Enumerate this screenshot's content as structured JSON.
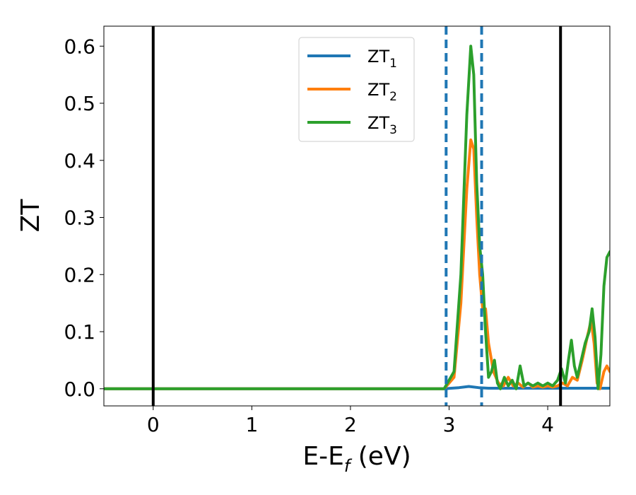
{
  "chart_data": {
    "type": "line",
    "xlabel": "E-E",
    "xlabel_sub": "f",
    "xlabel_unit": " (eV)",
    "ylabel": "ZT",
    "xlim": [
      -0.5,
      4.63
    ],
    "ylim": [
      -0.03,
      0.635
    ],
    "xticks": [
      0,
      1,
      2,
      3,
      4
    ],
    "xtick_labels": [
      "0",
      "1",
      "2",
      "3",
      "4"
    ],
    "yticks": [
      0.0,
      0.1,
      0.2,
      0.3,
      0.4,
      0.5,
      0.6
    ],
    "ytick_labels": [
      "0.0",
      "0.1",
      "0.2",
      "0.3",
      "0.4",
      "0.5",
      "0.6"
    ],
    "grid": false,
    "legend_position": "top-center",
    "vlines": [
      {
        "x": 0.0,
        "style": "solid",
        "color": "#000000"
      },
      {
        "x": 4.13,
        "style": "solid",
        "color": "#000000"
      },
      {
        "x": 2.97,
        "style": "dashed",
        "color": "#1f77b4"
      },
      {
        "x": 3.33,
        "style": "dashed",
        "color": "#1f77b4"
      }
    ],
    "series": [
      {
        "name": "ZT",
        "name_sub": "1",
        "color": "#1f77b4",
        "x": [
          -0.5,
          2.95,
          3.1,
          3.2,
          3.3,
          3.4,
          4.0,
          4.63
        ],
        "y": [
          0.0,
          0.0,
          0.002,
          0.004,
          0.002,
          0.001,
          0.001,
          0.001
        ]
      },
      {
        "name": "ZT",
        "name_sub": "2",
        "color": "#ff7f0e",
        "x": [
          -0.5,
          2.95,
          3.05,
          3.12,
          3.18,
          3.22,
          3.25,
          3.28,
          3.31,
          3.34,
          3.37,
          3.4,
          3.45,
          3.5,
          3.55,
          3.6,
          3.65,
          3.7,
          3.75,
          3.8,
          3.85,
          3.9,
          3.95,
          4.0,
          4.05,
          4.1,
          4.15,
          4.2,
          4.25,
          4.3,
          4.35,
          4.4,
          4.44,
          4.47,
          4.5,
          4.53,
          4.57,
          4.6,
          4.63
        ],
        "y": [
          0.0,
          0.0,
          0.02,
          0.15,
          0.35,
          0.436,
          0.42,
          0.3,
          0.2,
          0.14,
          0.14,
          0.08,
          0.03,
          0.01,
          0.005,
          0.02,
          0.005,
          0.01,
          0.003,
          0.01,
          0.003,
          0.005,
          0.003,
          0.005,
          0.003,
          0.005,
          0.01,
          0.005,
          0.02,
          0.015,
          0.05,
          0.09,
          0.12,
          0.08,
          0.01,
          0.0,
          0.03,
          0.04,
          0.03
        ]
      },
      {
        "name": "ZT",
        "name_sub": "3",
        "color": "#2ca02c",
        "x": [
          -0.5,
          2.95,
          3.05,
          3.12,
          3.18,
          3.22,
          3.25,
          3.28,
          3.31,
          3.34,
          3.37,
          3.4,
          3.43,
          3.46,
          3.49,
          3.52,
          3.56,
          3.6,
          3.64,
          3.68,
          3.72,
          3.76,
          3.8,
          3.85,
          3.9,
          3.95,
          4.0,
          4.05,
          4.1,
          4.14,
          4.18,
          4.21,
          4.24,
          4.27,
          4.3,
          4.34,
          4.38,
          4.42,
          4.45,
          4.48,
          4.51,
          4.54,
          4.57,
          4.6,
          4.63
        ],
        "y": [
          0.0,
          0.0,
          0.03,
          0.2,
          0.48,
          0.6,
          0.55,
          0.36,
          0.25,
          0.2,
          0.1,
          0.02,
          0.03,
          0.05,
          0.01,
          0.0,
          0.02,
          0.005,
          0.015,
          0.0,
          0.04,
          0.005,
          0.01,
          0.005,
          0.01,
          0.005,
          0.01,
          0.005,
          0.015,
          0.035,
          0.01,
          0.05,
          0.085,
          0.04,
          0.02,
          0.05,
          0.08,
          0.1,
          0.14,
          0.09,
          0.0,
          0.06,
          0.18,
          0.23,
          0.24
        ]
      }
    ]
  }
}
